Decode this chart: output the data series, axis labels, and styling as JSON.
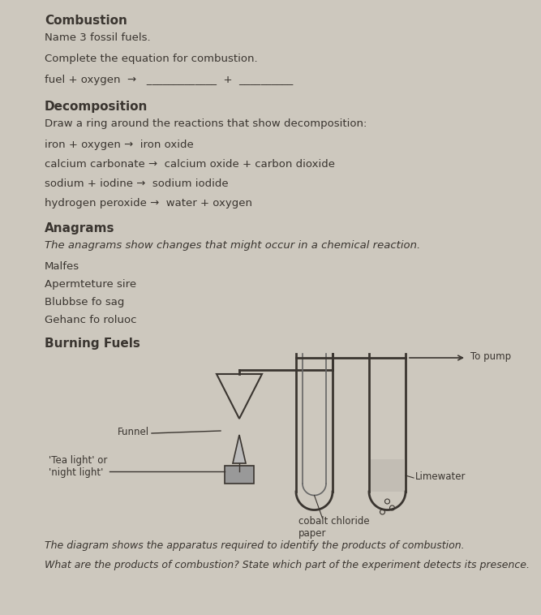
{
  "bg_color": "#cdc8be",
  "text_color": "#3a3530",
  "title_combustion": "Combustion",
  "line1": "Name 3 fossil fuels.",
  "line2": "Complete the equation for combustion.",
  "line3": "fuel + oxygen  →   _____________  +  __________",
  "title_decomp": "Decomposition",
  "line4": "Draw a ring around the reactions that show decomposition:",
  "rxn1": "iron + oxygen →  iron oxide",
  "rxn2": "calcium carbonate →  calcium oxide + carbon dioxide",
  "rxn3": "sodium + iodine →  sodium iodide",
  "rxn4": "hydrogen peroxide →  water + oxygen",
  "title_anagrams": "Anagrams",
  "line5": "The anagrams show changes that might occur in a chemical reaction.",
  "anagram1": "Malfes",
  "anagram2": "Apermteture sire",
  "anagram3": "Blubbse fo sag",
  "anagram4": "Gehanc fo roluoc",
  "title_burning": "Burning Fuels",
  "label_funnel": "Funnel",
  "label_tea": "'Tea light' or\n'night light'",
  "label_cobalt": "cobalt chloride\npaper",
  "label_limewater": "Limewater",
  "label_pump": "To pump",
  "footer1": "The diagram shows the apparatus required to identify the products of combustion.",
  "footer2": "What are the products of combustion? State which part of the experiment detects its presence."
}
